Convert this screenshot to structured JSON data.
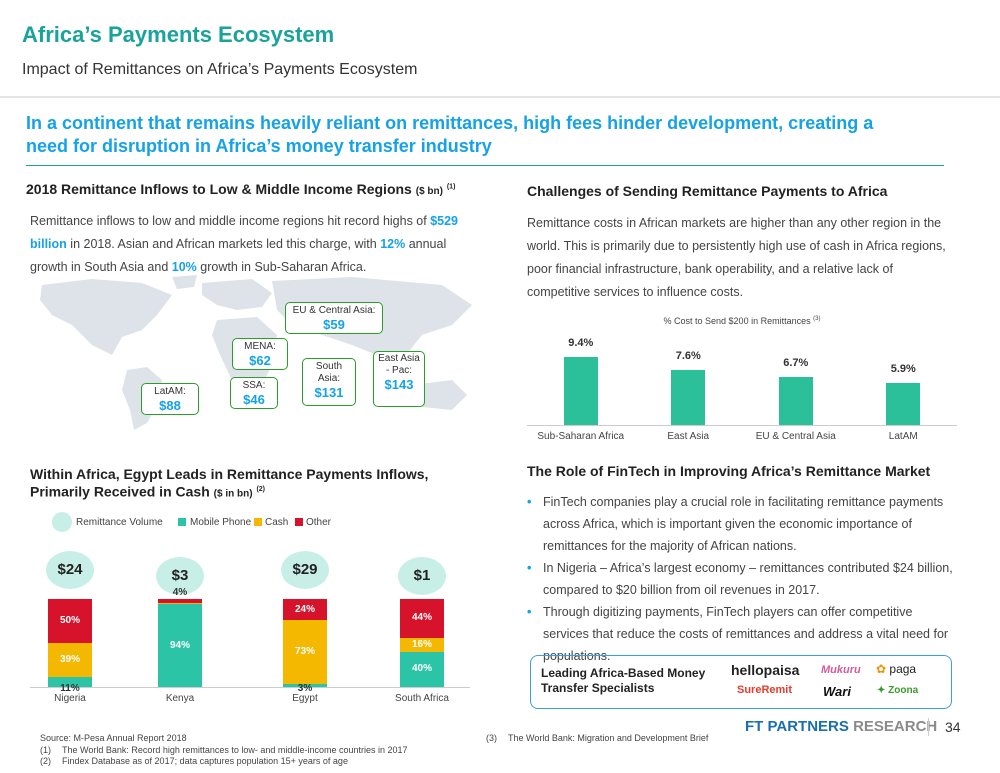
{
  "header": {
    "title": "Africa’s Payments Ecosystem",
    "subtitle": "Impact of Remittances on Africa’s Payments Ecosystem",
    "headline_line1": "In a continent that remains heavily reliant on remittances, high fees hinder development, creating a",
    "headline_line2": "need for disruption in Africa’s money transfer industry"
  },
  "inflows": {
    "title": "2018 Remittance Inflows to Low & Middle Income Regions",
    "unit": "($ bn)",
    "note": "(1)",
    "p1": "Remittance inflows to low and middle income regions hit record highs of ",
    "hl1": "$529",
    "hl2": "billion",
    "p2": " in 2018. Asian and African markets led this charge, with ",
    "hl3": "12%",
    "p3": " annual",
    "p4": "growth in South Asia and ",
    "hl4": "10%",
    "p5": " growth in Sub-Saharan Africa.",
    "regions": [
      {
        "name": "EU & Central Asia:",
        "value": "$59"
      },
      {
        "name": "MENA:",
        "value": "$62"
      },
      {
        "name": "South Asia:",
        "value": "$131"
      },
      {
        "name": "East Asia - Pac:",
        "value": "$143"
      },
      {
        "name": "SSA:",
        "value": "$46"
      },
      {
        "name": "LatAM:",
        "value": "$88"
      }
    ]
  },
  "challenges": {
    "title": "Challenges of Sending Remittance Payments to Africa",
    "text": "Remittance costs in African markets are higher than any other region in the world. This is primarily due to persistently high use of cash in Africa regions, poor financial infrastructure, bank operability, and a relative lack of competitive services to influence costs.",
    "chart_title": "% Cost to Send $200 in Remittances",
    "chart_note": "(3)"
  },
  "egypt": {
    "title_line1": "Within Africa, Egypt Leads in Remittance Payments Inflows,",
    "title_line2": "Primarily Received in Cash",
    "unit": "($ in bn)",
    "note": "(2)",
    "legend": {
      "volume": "Remittance Volume",
      "mobile": "Mobile Phone",
      "cash": "Cash",
      "other": "Other"
    }
  },
  "fintech": {
    "title": "The Role of FinTech in Improving Africa’s Remittance Market",
    "bullets": [
      "FinTech companies play a crucial role in facilitating remittance payments across Africa, which is important given the economic importance of remittances for the majority of African nations.",
      "In Nigeria – Africa’s largest economy – remittances contributed $24 billion, compared to $20 billion from oil revenues in 2017.",
      "Through digitizing payments, FinTech players can offer competitive services that reduce the costs of remittances and address a vital need for populations."
    ],
    "logos_label_line1": "Leading Africa-Based Money",
    "logos_label_line2": "Transfer Specialists",
    "logos": [
      "hellopaisa",
      "Mukuru",
      "paga",
      "SureRemit",
      "Wari",
      "Zoona"
    ]
  },
  "footer": {
    "source": "Source: M-Pesa Annual Report 2018",
    "n1_num": "(1)",
    "n1": "The World Bank: Record high remittances to low- and middle-income countries in 2017",
    "n2_num": "(2)",
    "n2": "Findex Database as of 2017; data captures population 15+ years of age",
    "n3_num": "(3)",
    "n3": "The World Bank: Migration and Development Brief",
    "brand1": "FT PARTNERS",
    "brand2": "RESEARCH",
    "page": "34"
  },
  "colors": {
    "teal": "#1aa39a",
    "blue": "#15a2e8",
    "bar_green": "#2bbf9a",
    "mobile": "#2bc4a6",
    "cash": "#f5b800",
    "other": "#d6132a",
    "bubble": "#c8efe7"
  },
  "chart_data": [
    {
      "type": "bar",
      "title": "% Cost to Send $200 in Remittances",
      "categories": [
        "Sub-Saharan Africa",
        "East Asia",
        "EU & Central Asia",
        "LatAM"
      ],
      "values": [
        9.4,
        7.6,
        6.7,
        5.9
      ],
      "labels": [
        "9.4%",
        "7.6%",
        "6.7%",
        "5.9%"
      ],
      "ylim": [
        0,
        10
      ]
    },
    {
      "type": "bar",
      "stacked": true,
      "categories": [
        "Nigeria",
        "Kenya",
        "Egypt",
        "South Africa"
      ],
      "volume_labels": [
        "$24",
        "$3",
        "$29",
        "$1"
      ],
      "series": [
        {
          "name": "Mobile Phone",
          "values": [
            11,
            94,
            3,
            40
          ],
          "labels": [
            "11%",
            "94%",
            "3%",
            "40%"
          ]
        },
        {
          "name": "Cash",
          "values": [
            39,
            2,
            73,
            16
          ],
          "labels": [
            "39%",
            "",
            "73%",
            "16%"
          ]
        },
        {
          "name": "Other",
          "values": [
            50,
            4,
            24,
            44
          ],
          "labels": [
            "50%",
            "4%",
            "24%",
            "44%"
          ]
        }
      ],
      "ylim": [
        0,
        100
      ]
    }
  ]
}
